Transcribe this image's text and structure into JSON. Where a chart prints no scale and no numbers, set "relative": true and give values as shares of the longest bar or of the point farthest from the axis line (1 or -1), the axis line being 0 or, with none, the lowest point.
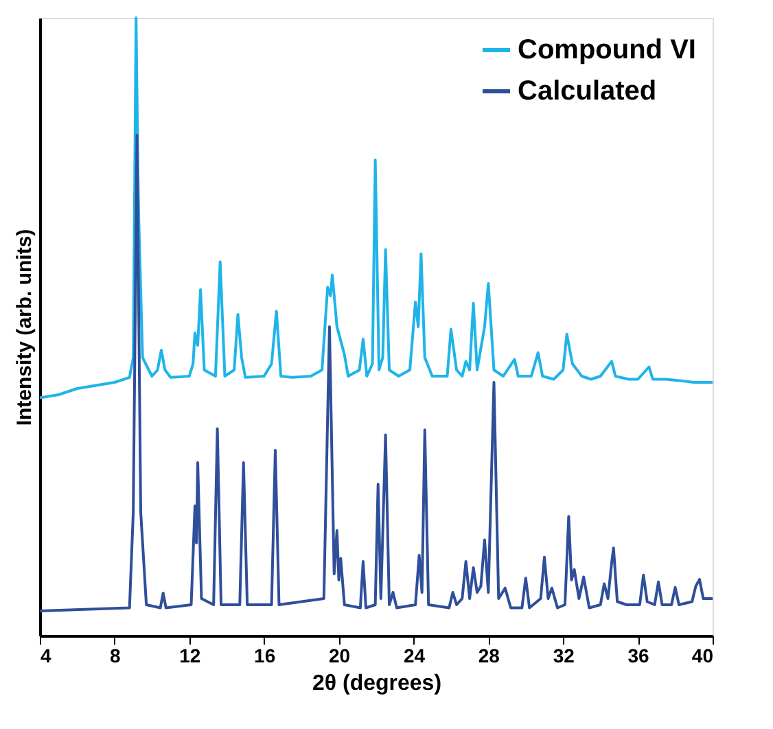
{
  "chart_data": {
    "type": "line",
    "relative": true,
    "xlabel": "2θ (degrees)",
    "ylabel": "Intensity (arb. units)",
    "xlim": [
      4,
      40
    ],
    "xticks": [
      4,
      8,
      12,
      16,
      20,
      24,
      28,
      32,
      36,
      40
    ],
    "grid": false,
    "legend": "top right",
    "tick_labels": "x",
    "marker": "none",
    "line_style": "solid",
    "series": [
      {
        "name": "Compound VI",
        "color": "#1fb4e8",
        "x": [
          4,
          5,
          6,
          7,
          8,
          8.8,
          9.0,
          9.15,
          9.25,
          9.3,
          9.5,
          10.0,
          10.3,
          10.5,
          10.7,
          11.0,
          12.0,
          12.2,
          12.3,
          12.45,
          12.6,
          12.8,
          13.4,
          13.65,
          13.9,
          14.4,
          14.6,
          14.8,
          15.0,
          16.0,
          16.4,
          16.66,
          16.9,
          17.5,
          18.5,
          19.1,
          19.4,
          19.55,
          19.65,
          19.9,
          20.3,
          20.5,
          21.1,
          21.3,
          21.5,
          21.8,
          21.95,
          22.15,
          22.35,
          22.5,
          22.7,
          23.2,
          23.8,
          24.1,
          24.25,
          24.4,
          24.6,
          25.0,
          25.8,
          26.0,
          26.3,
          26.6,
          26.8,
          27.0,
          27.2,
          27.4,
          27.8,
          28.0,
          28.3,
          28.8,
          29.4,
          29.6,
          30.3,
          30.66,
          30.9,
          31.5,
          32.0,
          32.2,
          32.5,
          33.0,
          33.5,
          34.0,
          34.6,
          34.8,
          35.5,
          36.0,
          36.6,
          36.8,
          37.5,
          38.5,
          39.0,
          40
        ],
        "values": [
          0.385,
          0.39,
          0.4,
          0.405,
          0.41,
          0.418,
          0.45,
          1.0,
          0.75,
          0.667,
          0.45,
          0.42,
          0.43,
          0.462,
          0.43,
          0.418,
          0.42,
          0.44,
          0.49,
          0.47,
          0.56,
          0.43,
          0.42,
          0.605,
          0.42,
          0.43,
          0.52,
          0.45,
          0.418,
          0.42,
          0.44,
          0.525,
          0.42,
          0.418,
          0.42,
          0.43,
          0.564,
          0.55,
          0.584,
          0.5,
          0.455,
          0.42,
          0.43,
          0.48,
          0.42,
          0.44,
          0.77,
          0.43,
          0.45,
          0.625,
          0.43,
          0.42,
          0.43,
          0.54,
          0.5,
          0.618,
          0.45,
          0.42,
          0.42,
          0.496,
          0.43,
          0.42,
          0.444,
          0.43,
          0.538,
          0.43,
          0.5,
          0.57,
          0.43,
          0.42,
          0.447,
          0.42,
          0.42,
          0.458,
          0.42,
          0.415,
          0.43,
          0.488,
          0.44,
          0.42,
          0.415,
          0.42,
          0.444,
          0.42,
          0.415,
          0.415,
          0.435,
          0.415,
          0.415,
          0.412,
          0.41,
          0.41
        ]
      },
      {
        "name": "Calculated",
        "color": "#2f4f9a",
        "x": [
          4,
          8.8,
          9.0,
          9.2,
          9.4,
          9.7,
          10.45,
          10.6,
          10.75,
          12.1,
          12.3,
          12.38,
          12.45,
          12.65,
          13.3,
          13.5,
          13.7,
          14.7,
          14.9,
          15.1,
          16.4,
          16.6,
          16.8,
          19.2,
          19.5,
          19.75,
          19.9,
          20.0,
          20.1,
          20.3,
          21.15,
          21.3,
          21.45,
          21.95,
          22.1,
          22.25,
          22.5,
          22.7,
          22.9,
          23.1,
          24.1,
          24.3,
          24.45,
          24.6,
          24.8,
          25.9,
          26.1,
          26.3,
          26.6,
          26.8,
          27.0,
          27.2,
          27.4,
          27.6,
          27.8,
          28.0,
          28.3,
          28.55,
          28.9,
          29.2,
          29.8,
          30.0,
          30.2,
          30.8,
          31.0,
          31.2,
          31.4,
          31.7,
          32.1,
          32.3,
          32.45,
          32.6,
          32.85,
          33.1,
          33.4,
          34.0,
          34.2,
          34.4,
          34.6,
          34.7,
          34.9,
          35.4,
          36.1,
          36.3,
          36.5,
          36.9,
          37.1,
          37.3,
          37.8,
          38.0,
          38.2,
          38.9,
          39.1,
          39.3,
          39.5,
          40
        ],
        "values": [
          0.04,
          0.045,
          0.2,
          0.81,
          0.2,
          0.05,
          0.045,
          0.069,
          0.045,
          0.05,
          0.21,
          0.15,
          0.28,
          0.06,
          0.05,
          0.335,
          0.05,
          0.05,
          0.28,
          0.05,
          0.05,
          0.3,
          0.05,
          0.06,
          0.5,
          0.1,
          0.17,
          0.09,
          0.125,
          0.05,
          0.045,
          0.12,
          0.045,
          0.05,
          0.245,
          0.06,
          0.325,
          0.05,
          0.07,
          0.045,
          0.05,
          0.13,
          0.07,
          0.333,
          0.05,
          0.045,
          0.07,
          0.05,
          0.06,
          0.12,
          0.06,
          0.11,
          0.07,
          0.08,
          0.155,
          0.07,
          0.41,
          0.06,
          0.077,
          0.045,
          0.045,
          0.093,
          0.045,
          0.06,
          0.127,
          0.06,
          0.077,
          0.045,
          0.05,
          0.193,
          0.09,
          0.107,
          0.06,
          0.095,
          0.045,
          0.05,
          0.084,
          0.06,
          0.118,
          0.142,
          0.055,
          0.05,
          0.05,
          0.098,
          0.055,
          0.05,
          0.087,
          0.05,
          0.05,
          0.078,
          0.05,
          0.055,
          0.08,
          0.091,
          0.06,
          0.06
        ]
      }
    ]
  }
}
